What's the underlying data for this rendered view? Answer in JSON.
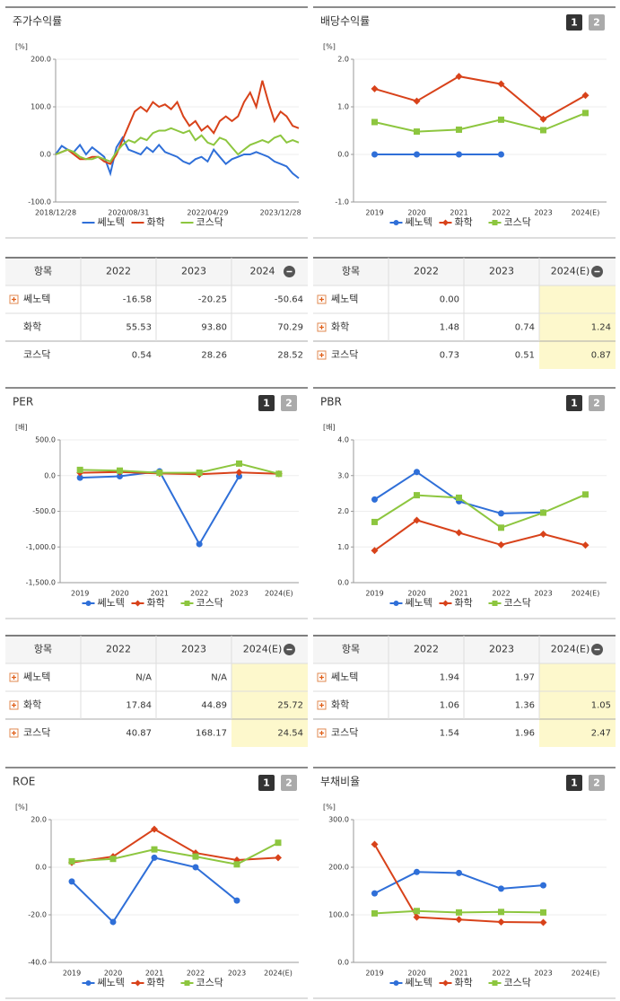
{
  "chart_data": [
    {
      "type": "line",
      "title": "주가수익률",
      "unit": "[%]",
      "markers": false,
      "categories": [
        "2018/12/28",
        null,
        null,
        null,
        null,
        null,
        null,
        null,
        null,
        null,
        null,
        null,
        "2020/08/31",
        null,
        null,
        null,
        null,
        null,
        null,
        null,
        null,
        null,
        null,
        null,
        null,
        "2022/04/29",
        null,
        null,
        null,
        null,
        null,
        null,
        null,
        null,
        null,
        null,
        null,
        "2023/12/28",
        null,
        null,
        null
      ],
      "series": [
        {
          "name": "쎄노텍",
          "color": "#2f6fd8",
          "values": [
            0,
            18,
            10,
            5,
            20,
            0,
            15,
            5,
            -5,
            -40,
            15,
            35,
            10,
            5,
            0,
            15,
            5,
            20,
            5,
            0,
            -5,
            -15,
            -20,
            -10,
            -5,
            -15,
            10,
            -5,
            -20,
            -10,
            -5,
            0,
            0,
            5,
            0,
            -5,
            -15,
            -20,
            -25,
            -40,
            -50
          ]
        },
        {
          "name": "화학",
          "color": "#d8421a",
          "values": [
            0,
            5,
            10,
            0,
            -10,
            -10,
            -5,
            -5,
            -15,
            -20,
            0,
            30,
            60,
            90,
            100,
            90,
            110,
            100,
            105,
            95,
            110,
            80,
            60,
            70,
            50,
            60,
            45,
            70,
            80,
            70,
            80,
            110,
            130,
            100,
            155,
            110,
            70,
            90,
            80,
            60,
            55
          ]
        },
        {
          "name": "코스닥",
          "color": "#8dc63f",
          "values": [
            0,
            5,
            10,
            5,
            -5,
            -10,
            -10,
            -5,
            -10,
            -15,
            5,
            20,
            30,
            25,
            35,
            30,
            45,
            50,
            50,
            55,
            50,
            45,
            50,
            30,
            40,
            25,
            20,
            35,
            30,
            15,
            0,
            10,
            20,
            25,
            30,
            25,
            35,
            40,
            25,
            30,
            25
          ]
        }
      ],
      "ylim": [
        -100,
        200
      ],
      "yticks": [
        {
          "value": -100,
          "label": "-100.0"
        },
        {
          "value": 0,
          "label": "0.0"
        },
        {
          "value": 100,
          "label": "100.0"
        },
        {
          "value": 200,
          "label": "200.0"
        }
      ]
    },
    {
      "type": "line",
      "title": "배당수익률",
      "unit": "[%]",
      "buttons": [
        "1",
        "2"
      ],
      "markers": true,
      "categories": [
        "2019",
        "2020",
        "2021",
        "2022",
        "2023",
        "2024(E)"
      ],
      "series": [
        {
          "name": "쎄노텍",
          "color": "#2f6fd8",
          "marker": "circle",
          "values": [
            0,
            0,
            0,
            0,
            null,
            null
          ]
        },
        {
          "name": "화학",
          "color": "#d8421a",
          "marker": "diamond",
          "values": [
            1.38,
            1.12,
            1.64,
            1.48,
            0.74,
            1.24
          ]
        },
        {
          "name": "코스닥",
          "color": "#8dc63f",
          "marker": "square",
          "values": [
            0.68,
            0.48,
            0.52,
            0.73,
            0.51,
            0.87
          ]
        }
      ],
      "ylim": [
        -1,
        2
      ],
      "yticks": [
        {
          "value": -1,
          "label": "-1.0"
        },
        {
          "value": 0,
          "label": "0.0"
        },
        {
          "value": 1,
          "label": "1.0"
        },
        {
          "value": 2,
          "label": "2.0"
        }
      ]
    },
    {
      "type": "line",
      "title": "PER",
      "unit": "[배]",
      "buttons": [
        "1",
        "2"
      ],
      "markers": true,
      "categories": [
        "2019",
        "2020",
        "2021",
        "2022",
        "2023",
        "2024(E)"
      ],
      "series": [
        {
          "name": "쎄노텍",
          "color": "#2f6fd8",
          "marker": "circle",
          "values": [
            -30,
            -10,
            60,
            -960,
            -10,
            null
          ]
        },
        {
          "name": "화학",
          "color": "#d8421a",
          "marker": "diamond",
          "values": [
            40,
            50,
            30,
            17.84,
            44.89,
            25.72
          ]
        },
        {
          "name": "코스닥",
          "color": "#8dc63f",
          "marker": "square",
          "values": [
            80,
            70,
            40,
            40.87,
            168.17,
            24.54
          ]
        }
      ],
      "ylim": [
        -1500,
        500
      ],
      "yticks": [
        {
          "value": -1500,
          "label": "-1,500.0"
        },
        {
          "value": -1000,
          "label": "-1,000.0"
        },
        {
          "value": -500,
          "label": "-500.0"
        },
        {
          "value": 0,
          "label": "0.0"
        },
        {
          "value": 500,
          "label": "500.0"
        }
      ]
    },
    {
      "type": "line",
      "title": "PBR",
      "unit": "[배]",
      "buttons": [
        "1",
        "2"
      ],
      "markers": true,
      "categories": [
        "2019",
        "2020",
        "2021",
        "2022",
        "2023",
        "2024(E)"
      ],
      "series": [
        {
          "name": "쎄노텍",
          "color": "#2f6fd8",
          "marker": "circle",
          "values": [
            2.33,
            3.1,
            2.28,
            1.94,
            1.97,
            null
          ]
        },
        {
          "name": "화학",
          "color": "#d8421a",
          "marker": "diamond",
          "values": [
            0.9,
            1.75,
            1.4,
            1.06,
            1.36,
            1.05
          ]
        },
        {
          "name": "코스닥",
          "color": "#8dc63f",
          "marker": "square",
          "values": [
            1.7,
            2.45,
            2.38,
            1.54,
            1.96,
            2.47
          ]
        }
      ],
      "ylim": [
        0,
        4
      ],
      "yticks": [
        {
          "value": 0,
          "label": "0.0"
        },
        {
          "value": 1,
          "label": "1.0"
        },
        {
          "value": 2,
          "label": "2.0"
        },
        {
          "value": 3,
          "label": "3.0"
        },
        {
          "value": 4,
          "label": "4.0"
        }
      ]
    },
    {
      "type": "line",
      "title": "ROE",
      "unit": "[%]",
      "buttons": [
        "1",
        "2"
      ],
      "markers": true,
      "categories": [
        "2019",
        "2020",
        "2021",
        "2022",
        "2023",
        "2024(E)"
      ],
      "series": [
        {
          "name": "쎄노텍",
          "color": "#2f6fd8",
          "marker": "circle",
          "values": [
            -6,
            -23,
            4,
            0,
            -14,
            null
          ]
        },
        {
          "name": "화학",
          "color": "#d8421a",
          "marker": "diamond",
          "values": [
            2,
            4.5,
            16,
            6,
            3,
            4
          ]
        },
        {
          "name": "코스닥",
          "color": "#8dc63f",
          "marker": "square",
          "values": [
            2.5,
            3.5,
            7.5,
            4.5,
            1.2,
            10.3
          ]
        }
      ],
      "ylim": [
        -40,
        20
      ],
      "yticks": [
        {
          "value": -40,
          "label": "-40.0"
        },
        {
          "value": -20,
          "label": "-20.0"
        },
        {
          "value": 0,
          "label": "0.0"
        },
        {
          "value": 20,
          "label": "20.0"
        }
      ]
    },
    {
      "type": "line",
      "title": "부채비율",
      "unit": "[%]",
      "buttons": [
        "1",
        "2"
      ],
      "markers": true,
      "categories": [
        "2019",
        "2020",
        "2021",
        "2022",
        "2023",
        "2024(E)"
      ],
      "series": [
        {
          "name": "쎄노텍",
          "color": "#2f6fd8",
          "marker": "circle",
          "values": [
            145,
            190,
            188,
            155,
            162,
            null
          ]
        },
        {
          "name": "화학",
          "color": "#d8421a",
          "marker": "diamond",
          "values": [
            248,
            95,
            90,
            85,
            84,
            null
          ]
        },
        {
          "name": "코스닥",
          "color": "#8dc63f",
          "marker": "square",
          "values": [
            103,
            108,
            105,
            106,
            105,
            null
          ]
        }
      ],
      "ylim": [
        0,
        300
      ],
      "yticks": [
        {
          "value": 0,
          "label": "0.0"
        },
        {
          "value": 100,
          "label": "100.0"
        },
        {
          "value": 200,
          "label": "200.0"
        },
        {
          "value": 300,
          "label": "300.0"
        }
      ]
    }
  ],
  "tables": [
    {
      "header": [
        "항목",
        "2022",
        "2023",
        "2024"
      ],
      "collapse_icon": true,
      "highlight_last": false,
      "rows": [
        {
          "name": "쎄노텍",
          "expandable": true,
          "cells": [
            "-16.58",
            "-20.25",
            "-50.64"
          ]
        },
        {
          "name": "화학",
          "expandable": false,
          "cells": [
            "55.53",
            "93.80",
            "70.29"
          ]
        },
        {
          "name": "코스닥",
          "expandable": false,
          "cells": [
            "0.54",
            "28.26",
            "28.52"
          ]
        }
      ]
    },
    {
      "header": [
        "항목",
        "2022",
        "2023",
        "2024(E)"
      ],
      "collapse_icon": true,
      "highlight_last": true,
      "rows": [
        {
          "name": "쎄노텍",
          "expandable": true,
          "cells": [
            "0.00",
            null,
            null
          ]
        },
        {
          "name": "화학",
          "expandable": true,
          "cells": [
            "1.48",
            "0.74",
            "1.24"
          ]
        },
        {
          "name": "코스닥",
          "expandable": true,
          "cells": [
            "0.73",
            "0.51",
            "0.87"
          ]
        }
      ]
    },
    {
      "header": [
        "항목",
        "2022",
        "2023",
        "2024(E)"
      ],
      "collapse_icon": true,
      "highlight_last": true,
      "rows": [
        {
          "name": "쎄노텍",
          "expandable": true,
          "cells": [
            "N/A",
            "N/A",
            null
          ]
        },
        {
          "name": "화학",
          "expandable": true,
          "cells": [
            "17.84",
            "44.89",
            "25.72"
          ]
        },
        {
          "name": "코스닥",
          "expandable": true,
          "cells": [
            "40.87",
            "168.17",
            "24.54"
          ]
        }
      ]
    },
    {
      "header": [
        "항목",
        "2022",
        "2023",
        "2024(E)"
      ],
      "collapse_icon": true,
      "highlight_last": true,
      "rows": [
        {
          "name": "쎄노텍",
          "expandable": true,
          "cells": [
            "1.94",
            "1.97",
            null
          ]
        },
        {
          "name": "화학",
          "expandable": true,
          "cells": [
            "1.06",
            "1.36",
            "1.05"
          ]
        },
        {
          "name": "코스닥",
          "expandable": true,
          "cells": [
            "1.54",
            "1.96",
            "2.47"
          ]
        }
      ]
    }
  ]
}
